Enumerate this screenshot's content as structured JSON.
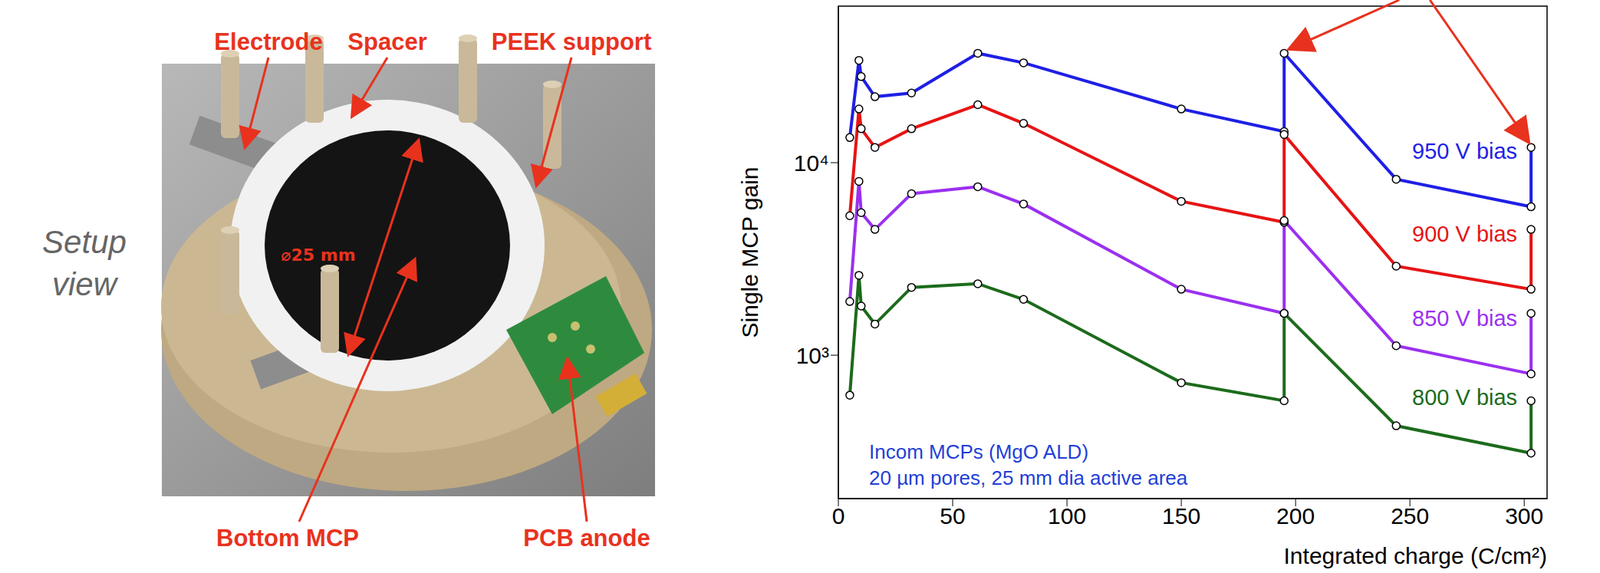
{
  "setup_view": {
    "caption": "Setup view",
    "labels": {
      "electrode": "Electrode",
      "spacer": "Spacer",
      "support": "PEEK support",
      "mcp": "Bottom MCP",
      "anode": "PCB anode"
    },
    "dimension": "⌀25 mm"
  },
  "chart_data": {
    "type": "line",
    "x_label": "Integrated charge (C/cm²)",
    "y_label": "Single MCP gain",
    "log": "y",
    "grid": false,
    "marker": "circle",
    "x": [
      5,
      9,
      10,
      16,
      32,
      61,
      81,
      150,
      195,
      195,
      244,
      303,
      303
    ],
    "xlim": [
      0,
      310
    ],
    "xticks": [
      0,
      50,
      100,
      150,
      200,
      250,
      300
    ],
    "ylim": [
      180,
      65000
    ],
    "yticks": [
      {
        "value": 1000,
        "label": "10³"
      },
      {
        "value": 10000,
        "label": "10⁴"
      }
    ],
    "series": [
      {
        "name": "950 V bias",
        "color": "#1f1fe6",
        "values": [
          13500,
          34000,
          28000,
          22000,
          23000,
          37000,
          33000,
          19000,
          14500,
          37000,
          8200,
          5900,
          12000
        ]
      },
      {
        "name": "900 V bias",
        "color": "#e61414",
        "values": [
          5300,
          19000,
          15000,
          12000,
          15000,
          20000,
          16000,
          6300,
          4900,
          14000,
          2900,
          2200,
          4500
        ]
      },
      {
        "name": "850 V bias",
        "color": "#9b30f0",
        "values": [
          1900,
          8000,
          5500,
          4500,
          6900,
          7500,
          6100,
          2200,
          1650,
          5000,
          1120,
          800,
          1650
        ]
      },
      {
        "name": "800 V bias",
        "color": "#1c6b1c",
        "values": [
          620,
          2600,
          1800,
          1450,
          2250,
          2350,
          1950,
          720,
          580,
          1650,
          430,
          310,
          580
        ]
      }
    ],
    "annotations": [
      "Incom MCPs (MgO ALD)",
      "20 µm pores, 25 mm dia active area"
    ]
  }
}
